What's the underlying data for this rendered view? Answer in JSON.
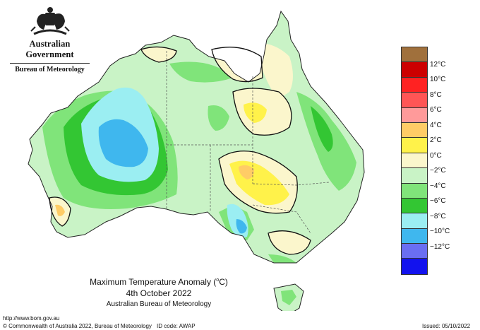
{
  "header": {
    "government": "Australian Government",
    "bureau": "Bureau of Meteorology"
  },
  "legend": {
    "items": [
      {
        "label": "",
        "color": "#a0703c"
      },
      {
        "label": "12°C",
        "color": "#cc0000"
      },
      {
        "label": "10°C",
        "color": "#ff2222"
      },
      {
        "label": "8°C",
        "color": "#ff5555"
      },
      {
        "label": "6°C",
        "color": "#ff9a9a"
      },
      {
        "label": "4°C",
        "color": "#ffcc66"
      },
      {
        "label": "2°C",
        "color": "#fff24a"
      },
      {
        "label": "0°C",
        "color": "#fbf6cc"
      },
      {
        "label": "−2°C",
        "color": "#c9f3c6"
      },
      {
        "label": "−4°C",
        "color": "#80e47a"
      },
      {
        "label": "−6°C",
        "color": "#33c633"
      },
      {
        "label": "−8°C",
        "color": "#9beef2"
      },
      {
        "label": "−10°C",
        "color": "#3fb7ee"
      },
      {
        "label": "−12°C",
        "color": "#6a6ef2"
      },
      {
        "label": "",
        "color": "#1212ee"
      }
    ]
  },
  "title": {
    "line1_main": "Maximum Temperature Anomaly (",
    "line1_unit": "o",
    "line1_end": "C)",
    "line2": "4th October 2022",
    "line3": "Australian Bureau of Meteorology"
  },
  "footer": {
    "url": "http://www.bom.gov.au",
    "copyright": "© Commonwealth of Australia 2022, Bureau of Meteorology",
    "id_code": "ID code: AWAP",
    "issued": "Issued: 05/10/2022"
  }
}
